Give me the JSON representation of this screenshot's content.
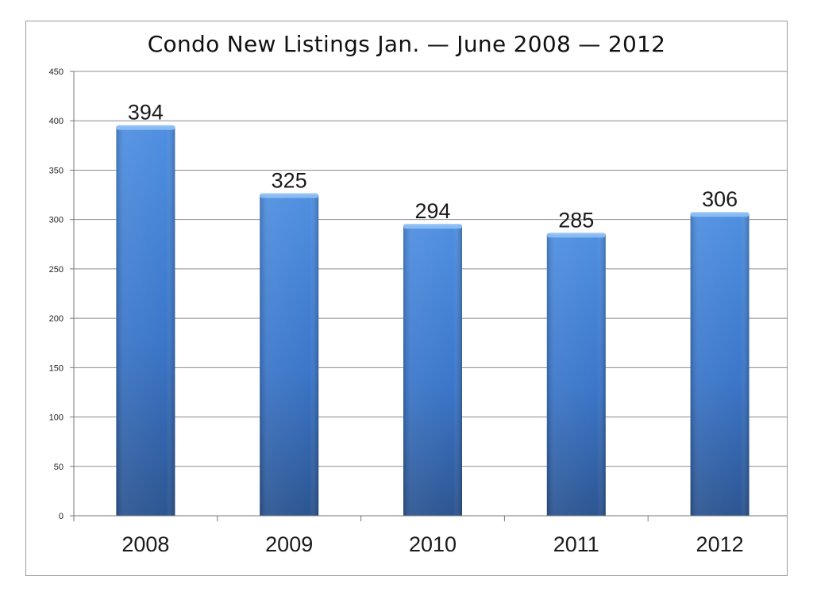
{
  "chart_data": {
    "type": "bar",
    "title": "Condo New Listings Jan. — June 2008 — 2012",
    "xlabel": "",
    "ylabel": "",
    "categories": [
      "2008",
      "2009",
      "2010",
      "2011",
      "2012"
    ],
    "values": [
      394,
      325,
      294,
      285,
      306
    ],
    "data_labels": [
      "394",
      "325",
      "294",
      "285",
      "306"
    ],
    "ylim": [
      0,
      450
    ],
    "yticks": [
      0,
      50,
      100,
      150,
      200,
      250,
      300,
      350,
      400,
      450
    ],
    "grid": true,
    "legend": "none",
    "colors": {
      "bar_top": "#4f8fe0",
      "bar_mid": "#3b76c9",
      "bar_bottom": "#2c5591",
      "bar_cap": "#8fc0f5",
      "gridline": "#8c8c8c",
      "axis": "#777777"
    }
  }
}
